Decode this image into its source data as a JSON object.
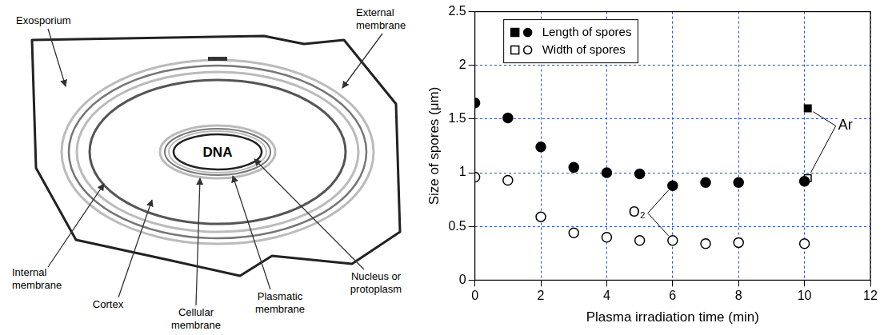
{
  "diagram": {
    "nodes": [
      {
        "label": "Exosporium"
      },
      {
        "label": "External membrane"
      },
      {
        "label": "DNA"
      },
      {
        "label": "Internal membrane"
      },
      {
        "label": "Cortex"
      },
      {
        "label": "Cellular membrane"
      },
      {
        "label": "Plasmatic membrane"
      },
      {
        "label": "Nucleus or protoplasm"
      }
    ]
  },
  "chart_data": {
    "type": "scatter",
    "x_label": "Plasma irradiation time (min)",
    "y_label": "Size of spores (μm)",
    "xlim": [
      0,
      12
    ],
    "xticks": [
      0,
      2,
      4,
      6,
      8,
      10,
      12
    ],
    "ylim": [
      0,
      2.5
    ],
    "yticks": [
      0,
      0.5,
      1,
      1.5,
      2,
      2.5
    ],
    "grid": true,
    "legend": "upper left",
    "series": [
      {
        "name": "Length of spores",
        "annotation": "O₂",
        "marker": "circle",
        "color": "#000000",
        "x": [
          0,
          1,
          2,
          3,
          4,
          5,
          6,
          7,
          8,
          10
        ],
        "values": [
          1.65,
          1.51,
          1.24,
          1.05,
          1.0,
          0.99,
          0.88,
          0.91,
          0.91,
          0.92
        ]
      },
      {
        "name": "Width of spores",
        "annotation": "O₂",
        "marker": "circle-open",
        "color": "#000000",
        "x": [
          0,
          1,
          2,
          3,
          4,
          5,
          6,
          7,
          8,
          10
        ],
        "values": [
          0.96,
          0.93,
          0.59,
          0.44,
          0.4,
          0.37,
          0.37,
          0.34,
          0.35,
          0.34
        ]
      },
      {
        "name": "Length of spores",
        "annotation": "Ar",
        "marker": "square",
        "color": "#000000",
        "x": [
          10.1
        ],
        "values": [
          1.6
        ]
      },
      {
        "name": "Width of spores",
        "annotation": "Ar",
        "marker": "square-open",
        "color": "#000000",
        "x": [
          10.1
        ],
        "values": [
          0.95
        ]
      }
    ]
  }
}
